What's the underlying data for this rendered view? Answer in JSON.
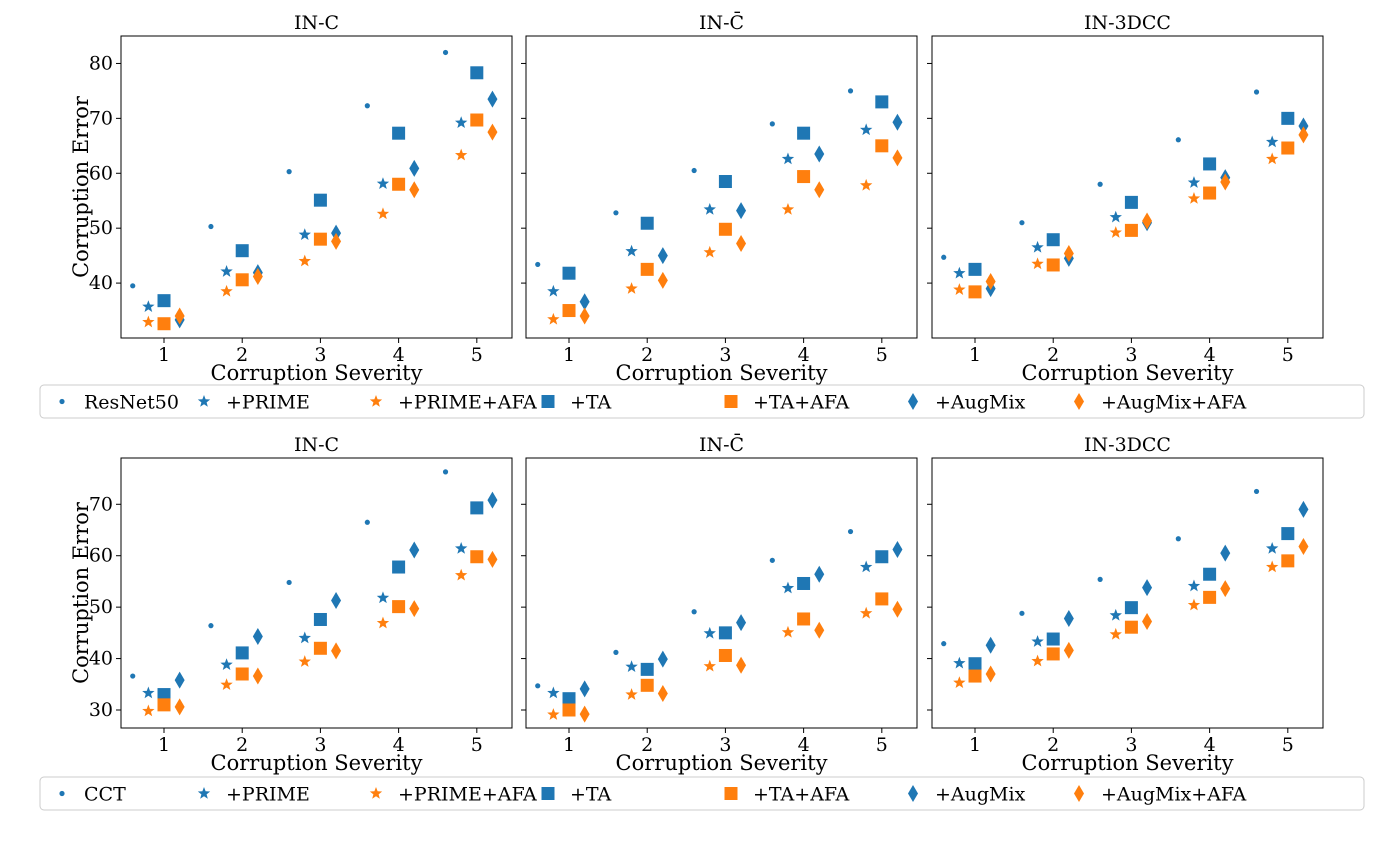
{
  "colors": {
    "blue": "#1f77b4",
    "orange": "#ff7f0e"
  },
  "shared": {
    "xlabel": "Corruption Severity",
    "ylabel": "Corruption Error",
    "x_ticks": [
      1,
      2,
      3,
      4,
      5
    ]
  },
  "legend_top": {
    "entries": [
      {
        "label": "ResNet50",
        "marker": "dot",
        "color": "#1f77b4"
      },
      {
        "label": "+PRIME",
        "marker": "star",
        "color": "#1f77b4"
      },
      {
        "label": "+PRIME+AFA",
        "marker": "star",
        "color": "#ff7f0e"
      },
      {
        "label": "+TA",
        "marker": "square",
        "color": "#1f77b4"
      },
      {
        "label": "+TA+AFA",
        "marker": "square",
        "color": "#ff7f0e"
      },
      {
        "label": "+AugMix",
        "marker": "diamond",
        "color": "#1f77b4"
      },
      {
        "label": "+AugMix+AFA",
        "marker": "diamond",
        "color": "#ff7f0e"
      }
    ]
  },
  "legend_bottom": {
    "entries": [
      {
        "label": "CCT",
        "marker": "dot",
        "color": "#1f77b4"
      },
      {
        "label": "+PRIME",
        "marker": "star",
        "color": "#1f77b4"
      },
      {
        "label": "+PRIME+AFA",
        "marker": "star",
        "color": "#ff7f0e"
      },
      {
        "label": "+TA",
        "marker": "square",
        "color": "#1f77b4"
      },
      {
        "label": "+TA+AFA",
        "marker": "square",
        "color": "#ff7f0e"
      },
      {
        "label": "+AugMix",
        "marker": "diamond",
        "color": "#1f77b4"
      },
      {
        "label": "+AugMix+AFA",
        "marker": "diamond",
        "color": "#ff7f0e"
      }
    ]
  },
  "chart_data": [
    {
      "type": "scatter",
      "title": "IN-C",
      "row": "top",
      "xlabel": "Corruption Severity",
      "ylabel": "Corruption Error",
      "x": [
        1,
        2,
        3,
        4,
        5
      ],
      "ylim": [
        30,
        85
      ],
      "yticks": [
        40,
        50,
        60,
        70,
        80
      ],
      "series": [
        {
          "name": "ResNet50",
          "values": [
            39.5,
            50.3,
            60.3,
            72.3,
            82.0
          ]
        },
        {
          "name": "+PRIME",
          "values": [
            35.7,
            42.1,
            48.8,
            58.1,
            69.2
          ]
        },
        {
          "name": "+PRIME+AFA",
          "values": [
            32.9,
            38.5,
            44.0,
            52.6,
            63.3
          ]
        },
        {
          "name": "+TA",
          "values": [
            36.8,
            45.9,
            55.1,
            67.3,
            78.3
          ]
        },
        {
          "name": "+TA+AFA",
          "values": [
            32.6,
            40.6,
            48.0,
            58.0,
            69.7
          ]
        },
        {
          "name": "+AugMix",
          "values": [
            33.3,
            41.9,
            49.1,
            60.9,
            73.5
          ]
        },
        {
          "name": "+AugMix+AFA",
          "values": [
            34.0,
            41.2,
            47.6,
            57.0,
            67.5
          ]
        }
      ]
    },
    {
      "type": "scatter",
      "title": "IN-C̄",
      "row": "top",
      "xlabel": "Corruption Severity",
      "ylabel": "",
      "x": [
        1,
        2,
        3,
        4,
        5
      ],
      "ylim": [
        30,
        85
      ],
      "yticks": [
        40,
        50,
        60,
        70,
        80
      ],
      "series": [
        {
          "name": "ResNet50",
          "values": [
            43.4,
            52.8,
            60.5,
            69.0,
            75.0
          ]
        },
        {
          "name": "+PRIME",
          "values": [
            38.5,
            45.8,
            53.4,
            62.6,
            67.9
          ]
        },
        {
          "name": "+PRIME+AFA",
          "values": [
            33.4,
            39.0,
            45.6,
            53.4,
            57.8
          ]
        },
        {
          "name": "+TA",
          "values": [
            41.8,
            50.9,
            58.5,
            67.3,
            73.0
          ]
        },
        {
          "name": "+TA+AFA",
          "values": [
            35.0,
            42.5,
            49.8,
            59.4,
            65.0
          ]
        },
        {
          "name": "+AugMix",
          "values": [
            36.6,
            45.0,
            53.2,
            63.5,
            69.3
          ]
        },
        {
          "name": "+AugMix+AFA",
          "values": [
            34.0,
            40.5,
            47.2,
            57.0,
            62.8
          ]
        }
      ]
    },
    {
      "type": "scatter",
      "title": "IN-3DCC",
      "row": "top",
      "xlabel": "Corruption Severity",
      "ylabel": "",
      "x": [
        1,
        2,
        3,
        4,
        5
      ],
      "ylim": [
        30,
        85
      ],
      "yticks": [
        40,
        50,
        60,
        70,
        80
      ],
      "series": [
        {
          "name": "ResNet50",
          "values": [
            44.7,
            51.0,
            58.0,
            66.1,
            74.8
          ]
        },
        {
          "name": "+PRIME",
          "values": [
            41.8,
            46.5,
            52.0,
            58.3,
            65.7
          ]
        },
        {
          "name": "+PRIME+AFA",
          "values": [
            38.8,
            43.5,
            49.2,
            55.4,
            62.6
          ]
        },
        {
          "name": "+TA",
          "values": [
            42.5,
            47.9,
            54.7,
            61.7,
            70.0
          ]
        },
        {
          "name": "+TA+AFA",
          "values": [
            38.4,
            43.3,
            49.6,
            56.4,
            64.6
          ]
        },
        {
          "name": "+AugMix",
          "values": [
            39.0,
            44.5,
            51.0,
            59.2,
            68.6
          ]
        },
        {
          "name": "+AugMix+AFA",
          "values": [
            40.3,
            45.4,
            51.3,
            58.4,
            67.0
          ]
        }
      ]
    },
    {
      "type": "scatter",
      "title": "IN-C",
      "row": "bottom",
      "xlabel": "Corruption Severity",
      "ylabel": "Corruption Error",
      "x": [
        1,
        2,
        3,
        4,
        5
      ],
      "ylim": [
        26.5,
        79
      ],
      "yticks": [
        30,
        40,
        50,
        60,
        70
      ],
      "series": [
        {
          "name": "CCT",
          "values": [
            36.6,
            46.4,
            54.8,
            66.5,
            76.3
          ]
        },
        {
          "name": "+PRIME",
          "values": [
            33.3,
            38.8,
            44.0,
            51.8,
            61.4
          ]
        },
        {
          "name": "+PRIME+AFA",
          "values": [
            29.8,
            34.9,
            39.4,
            46.9,
            56.2
          ]
        },
        {
          "name": "+TA",
          "values": [
            33.0,
            41.1,
            47.6,
            57.8,
            69.3
          ]
        },
        {
          "name": "+TA+AFA",
          "values": [
            31.0,
            37.0,
            42.0,
            50.1,
            59.8
          ]
        },
        {
          "name": "+AugMix",
          "values": [
            35.8,
            44.3,
            51.3,
            61.1,
            70.8
          ]
        },
        {
          "name": "+AugMix+AFA",
          "values": [
            30.6,
            36.6,
            41.5,
            49.7,
            59.3
          ]
        }
      ]
    },
    {
      "type": "scatter",
      "title": "IN-C̄",
      "row": "bottom",
      "xlabel": "Corruption Severity",
      "ylabel": "",
      "x": [
        1,
        2,
        3,
        4,
        5
      ],
      "ylim": [
        26.5,
        79
      ],
      "yticks": [
        30,
        40,
        50,
        60,
        70
      ],
      "series": [
        {
          "name": "CCT",
          "values": [
            34.7,
            41.2,
            49.1,
            59.1,
            64.7
          ]
        },
        {
          "name": "+PRIME",
          "values": [
            33.3,
            38.4,
            44.9,
            53.7,
            57.8
          ]
        },
        {
          "name": "+PRIME+AFA",
          "values": [
            29.1,
            33.0,
            38.5,
            45.1,
            48.8
          ]
        },
        {
          "name": "+TA",
          "values": [
            32.2,
            37.9,
            45.0,
            54.6,
            59.8
          ]
        },
        {
          "name": "+TA+AFA",
          "values": [
            30.0,
            34.8,
            40.6,
            47.7,
            51.6
          ]
        },
        {
          "name": "+AugMix",
          "values": [
            34.1,
            39.9,
            47.0,
            56.4,
            61.2
          ]
        },
        {
          "name": "+AugMix+AFA",
          "values": [
            29.2,
            33.2,
            38.7,
            45.5,
            49.6
          ]
        }
      ]
    },
    {
      "type": "scatter",
      "title": "IN-3DCC",
      "row": "bottom",
      "xlabel": "Corruption Severity",
      "ylabel": "",
      "x": [
        1,
        2,
        3,
        4,
        5
      ],
      "ylim": [
        26.5,
        79
      ],
      "yticks": [
        30,
        40,
        50,
        60,
        70
      ],
      "series": [
        {
          "name": "CCT",
          "values": [
            42.9,
            48.8,
            55.4,
            63.3,
            72.5
          ]
        },
        {
          "name": "+PRIME",
          "values": [
            39.1,
            43.3,
            48.4,
            54.1,
            61.4
          ]
        },
        {
          "name": "+PRIME+AFA",
          "values": [
            35.3,
            39.5,
            44.7,
            50.4,
            57.8
          ]
        },
        {
          "name": "+TA",
          "values": [
            39.0,
            43.8,
            49.9,
            56.4,
            64.3
          ]
        },
        {
          "name": "+TA+AFA",
          "values": [
            36.6,
            40.9,
            46.1,
            51.9,
            59.0
          ]
        },
        {
          "name": "+AugMix",
          "values": [
            42.6,
            47.8,
            53.8,
            60.5,
            69.0
          ]
        },
        {
          "name": "+AugMix+AFA",
          "values": [
            37.0,
            41.6,
            47.2,
            53.6,
            61.8
          ]
        }
      ]
    }
  ]
}
